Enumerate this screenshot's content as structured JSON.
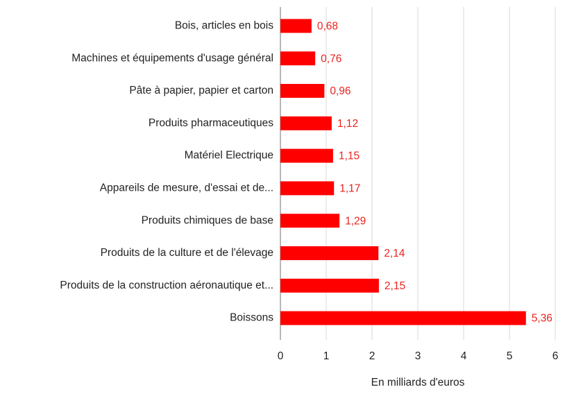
{
  "chart_data": {
    "type": "bar",
    "orientation": "horizontal",
    "categories": [
      "Bois, articles en bois",
      "Machines et équipements d'usage général",
      "Pâte à papier, papier et carton",
      "Produits pharmaceutiques",
      "Matériel Electrique",
      "Appareils de mesure, d'essai et de...",
      "Produits chimiques de base",
      "Produits de la culture et de l'élevage",
      "Produits de la construction aéronautique et...",
      "Boissons"
    ],
    "values": [
      0.68,
      0.76,
      0.96,
      1.12,
      1.15,
      1.17,
      1.29,
      2.14,
      2.15,
      5.36
    ],
    "value_labels": [
      "0,68",
      "0,76",
      "0,96",
      "1,12",
      "1,15",
      "1,17",
      "1,29",
      "2,14",
      "2,15",
      "5,36"
    ],
    "color": "#ff0000",
    "xlabel": "En milliards d'euros",
    "xlim": [
      0,
      6
    ],
    "xticks": [
      0,
      1,
      2,
      3,
      4,
      5,
      6
    ],
    "grid": true
  }
}
